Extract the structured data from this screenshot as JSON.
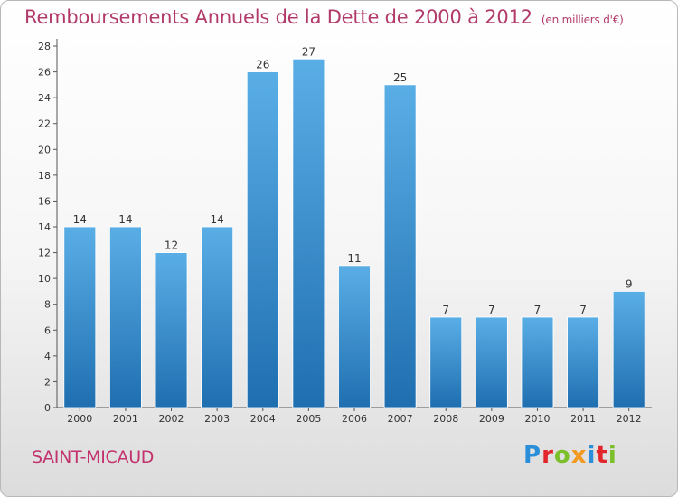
{
  "header": {
    "title": "Remboursements Annuels de la Dette de 2000 à 2012",
    "unit": "(en milliers d'€)"
  },
  "footer": {
    "commune": "SAINT-MICAUD",
    "brand_letters": [
      "P",
      "r",
      "o",
      "x",
      "i",
      "t",
      "i"
    ],
    "brand_colors": [
      "#2a8fd8",
      "#e2262b",
      "#7bbf2a",
      "#f29a1f",
      "#2a8fd8",
      "#e2262b",
      "#7bbf2a"
    ]
  },
  "colors": {
    "bar_top": "#5aaee6",
    "bar_bottom": "#1f6fb0",
    "title": "#b23a6a"
  },
  "chart_data": {
    "type": "bar",
    "title": "Remboursements Annuels de la Dette de 2000 à 2012",
    "subtitle": "(en milliers d'€)",
    "xlabel": "",
    "ylabel": "",
    "categories": [
      "2000",
      "2001",
      "2002",
      "2003",
      "2004",
      "2005",
      "2006",
      "2007",
      "2008",
      "2009",
      "2010",
      "2011",
      "2012"
    ],
    "values": [
      14,
      14,
      12,
      14,
      26,
      27,
      11,
      25,
      7,
      7,
      7,
      7,
      9
    ],
    "ylim": [
      0,
      28
    ],
    "yticks": [
      0,
      2,
      4,
      6,
      8,
      10,
      12,
      14,
      16,
      18,
      20,
      22,
      24,
      26,
      28
    ],
    "grid": false,
    "legend": "none"
  }
}
